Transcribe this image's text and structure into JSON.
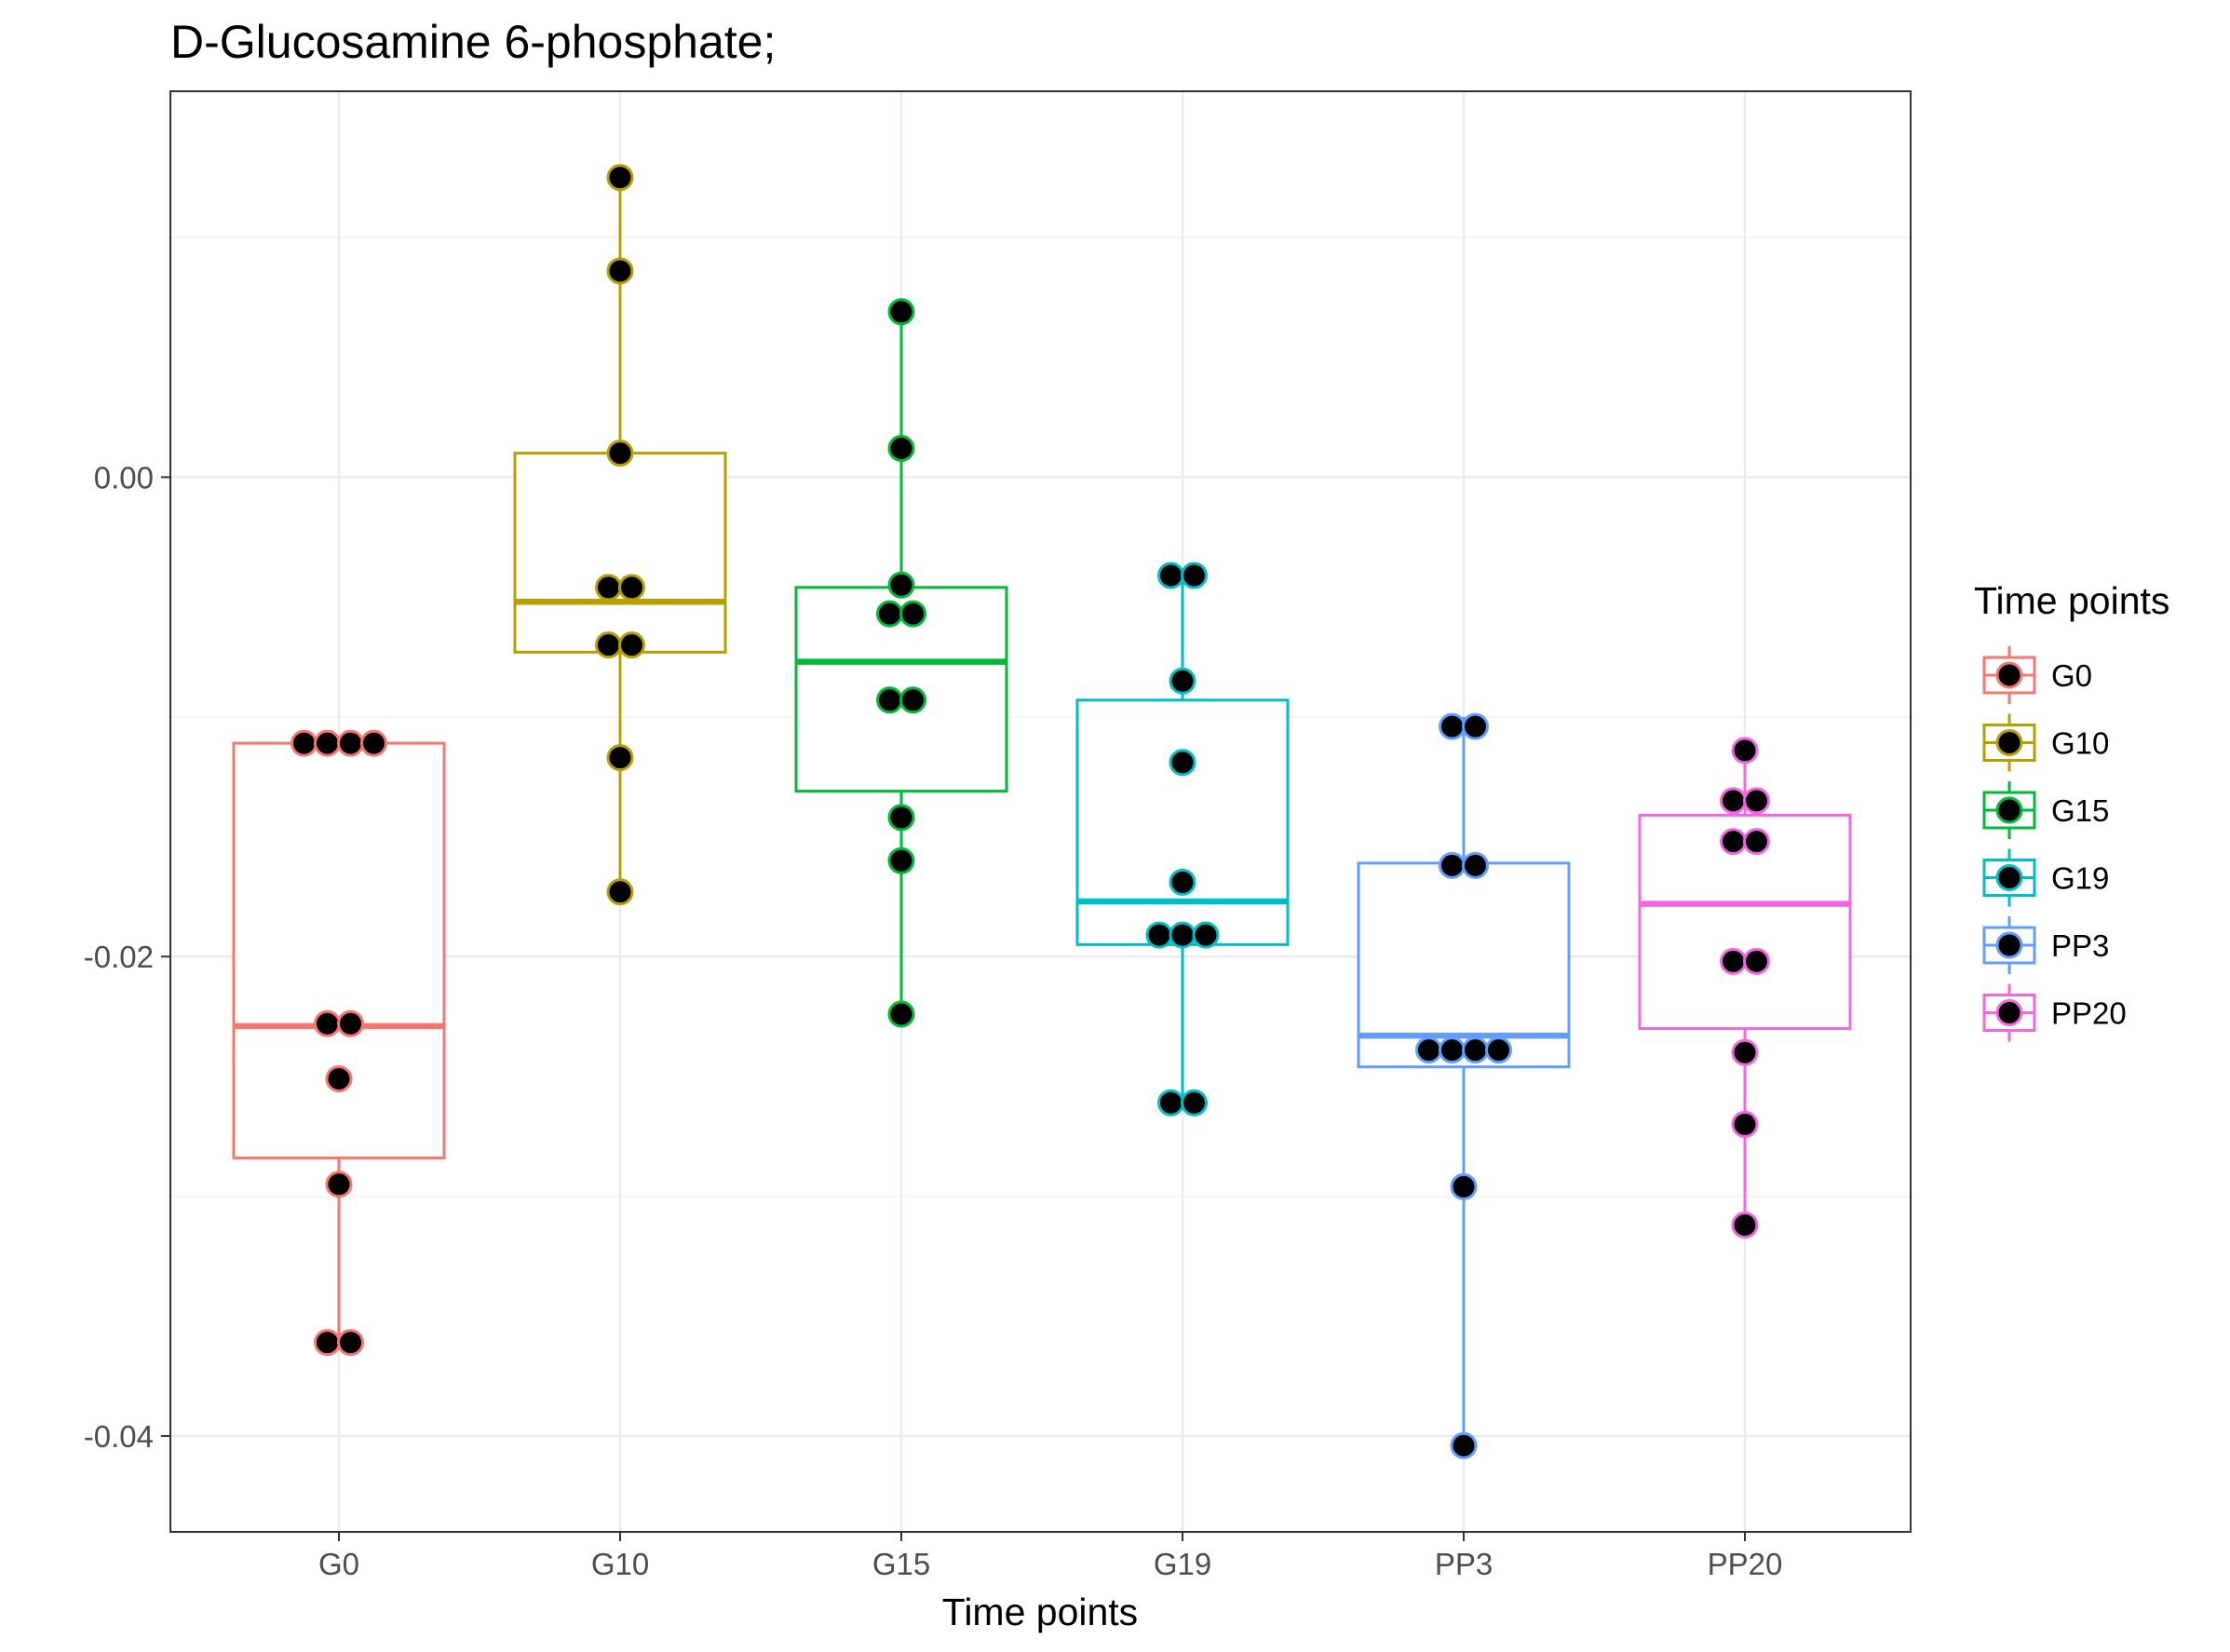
{
  "chart_data": {
    "type": "box",
    "title": "D-Glucosamine 6-phosphate;",
    "xlabel": "Time points",
    "ylabel": "",
    "ylim": [
      -0.044,
      0.0161
    ],
    "yticks": [
      0.0,
      -0.02,
      -0.04
    ],
    "ytick_labels": [
      "0.00",
      "-0.02",
      "-0.04"
    ],
    "grid": true,
    "legend": {
      "title": "Time points",
      "position": "right"
    },
    "categories": [
      "G0",
      "G10",
      "G15",
      "G19",
      "PP3",
      "PP20"
    ],
    "series": [
      {
        "name": "G0",
        "color": "#F8766D",
        "box": {
          "min": -0.0361,
          "q1": -0.0284,
          "median": -0.0229,
          "q3": -0.0111,
          "max": -0.0111
        },
        "points": [
          -0.0111,
          -0.0111,
          -0.0111,
          -0.0111,
          -0.0228,
          -0.0228,
          -0.0251,
          -0.0295,
          -0.0361,
          -0.0361
        ]
      },
      {
        "name": "G10",
        "color": "#B79F00",
        "box": {
          "min": -0.0173,
          "q1": -0.0073,
          "median": -0.0052,
          "q3": 0.001,
          "max": 0.0125
        },
        "points": [
          0.0125,
          0.0086,
          0.001,
          -0.0046,
          -0.0046,
          -0.007,
          -0.007,
          -0.0117,
          -0.0173
        ]
      },
      {
        "name": "G15",
        "color": "#00BA38",
        "box": {
          "min": -0.0224,
          "q1": -0.0131,
          "median": -0.0077,
          "q3": -0.0046,
          "max": 0.0069
        },
        "points": [
          0.0069,
          0.0012,
          -0.0045,
          -0.0057,
          -0.0057,
          -0.0093,
          -0.0093,
          -0.0142,
          -0.016,
          -0.0224
        ]
      },
      {
        "name": "G19",
        "color": "#00BFC4",
        "box": {
          "min": -0.0261,
          "q1": -0.0195,
          "median": -0.0177,
          "q3": -0.0093,
          "max": -0.0041
        },
        "points": [
          -0.0041,
          -0.0041,
          -0.0085,
          -0.0119,
          -0.0169,
          -0.0191,
          -0.0191,
          -0.0191,
          -0.0261,
          -0.0261
        ]
      },
      {
        "name": "PP3",
        "color": "#619CFF",
        "box": {
          "min": -0.0404,
          "q1": -0.0246,
          "median": -0.0233,
          "q3": -0.0161,
          "max": -0.01
        },
        "points": [
          -0.0104,
          -0.0104,
          -0.0162,
          -0.0162,
          -0.0239,
          -0.0239,
          -0.0239,
          -0.0239,
          -0.0296,
          -0.0404
        ]
      },
      {
        "name": "PP20",
        "color": "#F564E3",
        "box": {
          "min": -0.0312,
          "q1": -0.023,
          "median": -0.0178,
          "q3": -0.0141,
          "max": -0.0114
        },
        "points": [
          -0.0114,
          -0.0135,
          -0.0135,
          -0.0152,
          -0.0152,
          -0.0202,
          -0.0202,
          -0.024,
          -0.027,
          -0.0312
        ]
      }
    ]
  }
}
